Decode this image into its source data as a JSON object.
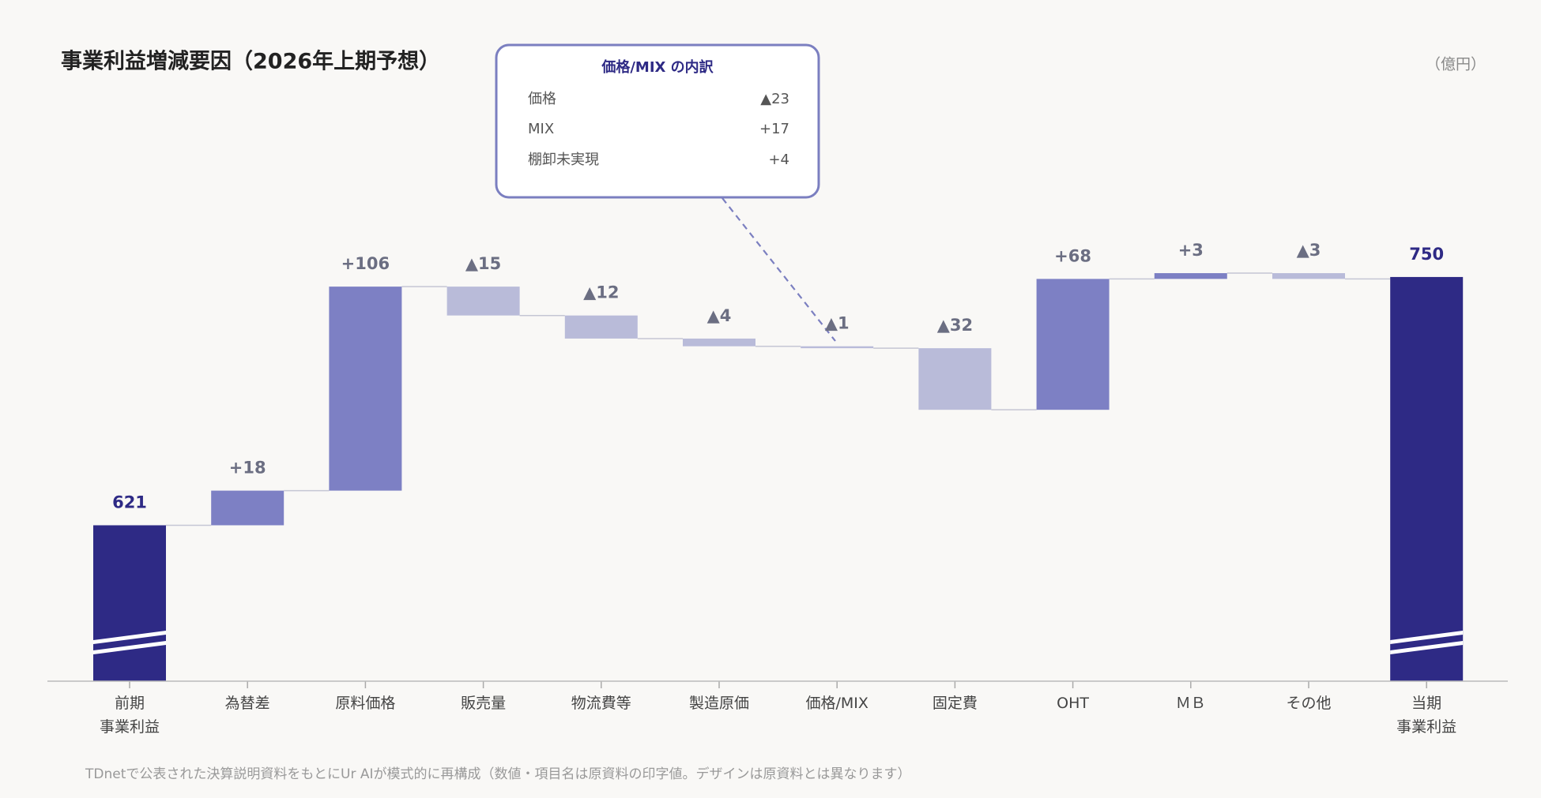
{
  "chart_data": {
    "type": "waterfall",
    "title": "事業利益増減要因（2026年上期予想）",
    "unit": "（億円）",
    "categories": [
      "前期\n事業利益",
      "為替差",
      "原料価格",
      "販売量",
      "物流費等",
      "製造原価",
      "価格/MIX",
      "固定費",
      "OHT",
      "ＭＢ",
      "その他",
      "当期\n事業利益"
    ],
    "values": [
      621,
      18,
      106,
      -15,
      -12,
      -4,
      -1,
      -32,
      68,
      3,
      -3,
      750
    ],
    "value_labels": [
      "621",
      "+18",
      "+106",
      "▲15",
      "▲12",
      "▲4",
      "▲1",
      "▲32",
      "+68",
      "+3",
      "▲3",
      "750"
    ],
    "colors": {
      "total": "#2e2a85",
      "increase": "#7d80c4",
      "decrease": "#b9bbd9"
    },
    "ylim": [
      540,
      800
    ],
    "callout": {
      "title": "価格/MIX の内訳",
      "rows": [
        [
          "価格",
          "▲23"
        ],
        [
          "MIX",
          "+17"
        ],
        [
          "棚卸未実現",
          "+4"
        ]
      ]
    },
    "note": "TDnetで公表された決算説明資料をもとにUr AIが模式的に再構成（数値・項目名は原資料の印字値。デザインは原資料とは異なります）"
  }
}
